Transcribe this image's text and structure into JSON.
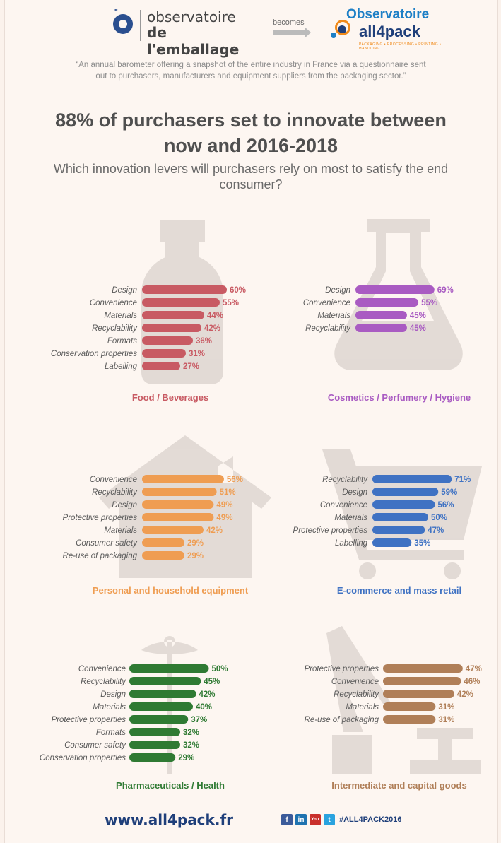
{
  "header": {
    "left_logo": {
      "line1": "observatoire",
      "line2": "de l'emballage"
    },
    "becomes": "becomes",
    "right_logo": {
      "line1": "Observatoire",
      "line2": "all4pack",
      "tagline": "PACKAGING • PROCESSING • PRINTING • HANDLING"
    }
  },
  "quote": "“An annual barometer offering a snapshot of the entire industry in France via a questionnaire sent out to purchasers, manufacturers and equipment suppliers from the packaging sector.”",
  "headline": "88% of purchasers set to innovate between now and 2016-2018",
  "subtitle": "Which innovation levers will purchasers rely on most to satisfy the end consumer?",
  "chart_data": [
    {
      "type": "bar",
      "title": "Food / Beverages",
      "color": "#c85a63",
      "categories": [
        "Design",
        "Convenience",
        "Materials",
        "Recyclability",
        "Formats",
        "Conservation properties",
        "Labelling"
      ],
      "values": [
        60,
        55,
        44,
        42,
        36,
        31,
        27
      ],
      "value_labels": [
        "60%",
        "55%",
        "44%",
        "42%",
        "36%",
        "31%",
        "27%"
      ],
      "icon": "bottle-icon"
    },
    {
      "type": "bar",
      "title": "Cosmetics / Perfumery / Hygiene",
      "color": "#a95bc2",
      "categories": [
        "Design",
        "Convenience",
        "Materials",
        "Recyclability"
      ],
      "values": [
        69,
        55,
        45,
        45
      ],
      "value_labels": [
        "69%",
        "55%",
        "45%",
        "45%"
      ],
      "icon": "flask-icon"
    },
    {
      "type": "bar",
      "title": "Personal and household equipment",
      "color": "#ef9d52",
      "categories": [
        "Convenience",
        "Recyclability",
        "Design",
        "Protective properties",
        "Materials",
        "Consumer safety",
        "Re-use of packaging"
      ],
      "values": [
        56,
        51,
        49,
        49,
        42,
        29,
        29
      ],
      "value_labels": [
        "56%",
        "51%",
        "49%",
        "49%",
        "42%",
        "29%",
        "29%"
      ],
      "icon": "house-icon"
    },
    {
      "type": "bar",
      "title": "E-commerce and mass retail",
      "color": "#3f72c3",
      "categories": [
        "Recyclability",
        "Design",
        "Convenience",
        "Materials",
        "Protective properties",
        "Labelling"
      ],
      "values": [
        71,
        59,
        56,
        50,
        47,
        35
      ],
      "value_labels": [
        "71%",
        "59%",
        "56%",
        "50%",
        "47%",
        "35%"
      ],
      "icon": "shopping-cart-icon"
    },
    {
      "type": "bar",
      "title": "Pharmaceuticals / Health",
      "color": "#2f7a33",
      "categories": [
        "Convenience",
        "Recyclability",
        "Design",
        "Materials",
        "Protective properties",
        "Formats",
        "Consumer safety",
        "Conservation properties"
      ],
      "values": [
        50,
        45,
        42,
        40,
        37,
        32,
        32,
        29
      ],
      "value_labels": [
        "50%",
        "45%",
        "42%",
        "40%",
        "37%",
        "32%",
        "32%",
        "29%"
      ],
      "icon": "caduceus-icon"
    },
    {
      "type": "bar",
      "title": "Intermediate and capital goods",
      "color": "#b07f58",
      "categories": [
        "Protective properties",
        "Convenience",
        "Recyclability",
        "Materials",
        "Re-use of packaging"
      ],
      "values": [
        47,
        46,
        42,
        31,
        31
      ],
      "value_labels": [
        "47%",
        "46%",
        "42%",
        "31%",
        "31%"
      ],
      "icon": "crane-icon"
    }
  ],
  "footer": {
    "url": "www.all4pack.fr",
    "social": [
      {
        "name": "facebook-icon",
        "glyph": "f",
        "color": "#3b5b9a"
      },
      {
        "name": "linkedin-icon",
        "glyph": "in",
        "color": "#1f73b0"
      },
      {
        "name": "youtube-icon",
        "glyph": "You",
        "color": "#c9302c"
      },
      {
        "name": "twitter-icon",
        "glyph": "t",
        "color": "#2aa3df"
      }
    ],
    "hashtag": "#ALL4PACK2016"
  }
}
